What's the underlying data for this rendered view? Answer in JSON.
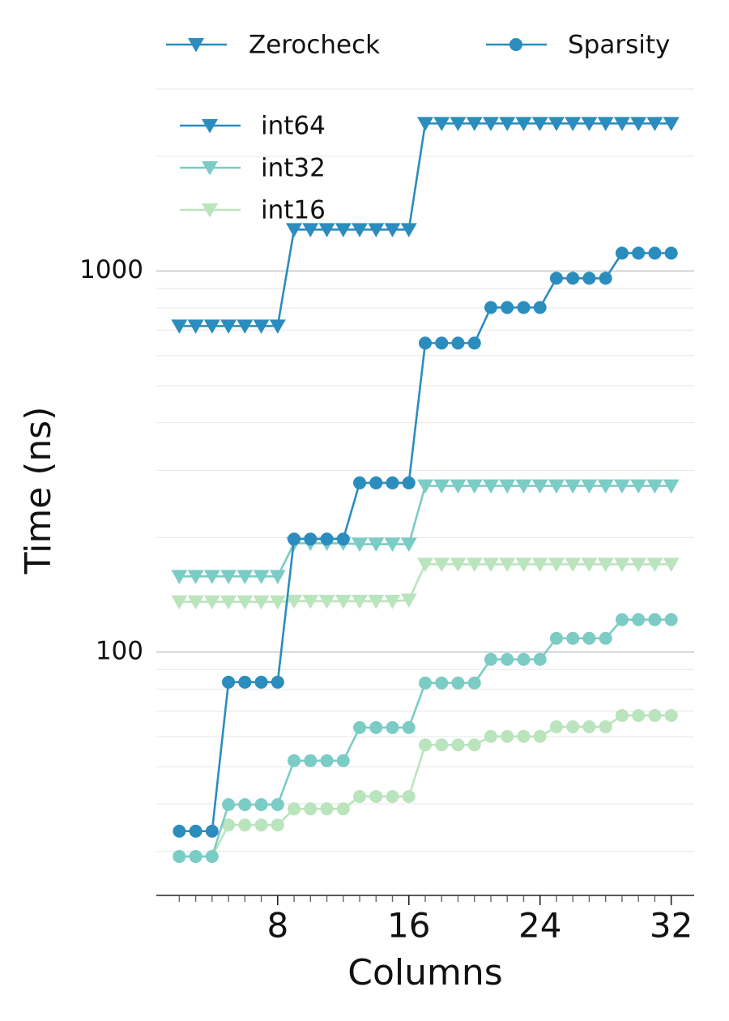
{
  "chart_data": {
    "type": "line",
    "xlabel": "Columns",
    "ylabel": "Time (ns)",
    "log_y": true,
    "grid": true,
    "x": [
      2,
      3,
      4,
      5,
      6,
      7,
      8,
      9,
      10,
      11,
      12,
      13,
      14,
      15,
      16,
      17,
      18,
      19,
      20,
      21,
      22,
      23,
      24,
      25,
      26,
      27,
      28,
      29,
      30,
      31,
      32
    ],
    "xlim": [
      0.6,
      33.4
    ],
    "xticks": [
      8,
      16,
      24,
      32
    ],
    "ylim": [
      23,
      3000
    ],
    "yticks": [
      100,
      1000
    ],
    "yminor": [
      30,
      40,
      50,
      60,
      70,
      80,
      90,
      200,
      300,
      400,
      500,
      600,
      700,
      800,
      900,
      2000,
      3000
    ],
    "methods": [
      {
        "name": "Zerocheck",
        "marker": "triangle-down"
      },
      {
        "name": "Sparsity",
        "marker": "circle"
      }
    ],
    "dtypes": [
      {
        "name": "int64",
        "color": "#2b8cbe"
      },
      {
        "name": "int32",
        "color": "#7bccc4"
      },
      {
        "name": "int16",
        "color": "#bae4bc"
      }
    ],
    "series": [
      {
        "method": 0,
        "dtype": 2,
        "values": [
          135.5,
          135.5,
          135.5,
          135.5,
          135.5,
          135.5,
          135.5,
          136,
          136,
          136,
          136,
          136,
          136,
          136,
          137,
          170,
          170,
          170,
          170,
          170,
          170,
          170,
          170,
          170,
          170,
          170,
          170,
          170,
          170,
          170,
          170
        ]
      },
      {
        "method": 0,
        "dtype": 1,
        "values": [
          158,
          158,
          158,
          158,
          158,
          158,
          158,
          193,
          193,
          193,
          193,
          192,
          192,
          192,
          192,
          273,
          273,
          273,
          273,
          273,
          273,
          273,
          273,
          273,
          273,
          273,
          273,
          273,
          273,
          273,
          273
        ]
      },
      {
        "method": 0,
        "dtype": 0,
        "values": [
          717,
          717,
          717,
          717,
          717,
          717,
          717,
          1284,
          1284,
          1284,
          1284,
          1284,
          1284,
          1284,
          1284,
          2438,
          2438,
          2438,
          2438,
          2438,
          2438,
          2438,
          2438,
          2438,
          2438,
          2438,
          2438,
          2438,
          2438,
          2438,
          2438
        ]
      },
      {
        "method": 1,
        "dtype": 2,
        "values": [
          29.1,
          29.1,
          29.1,
          35.2,
          35.2,
          35.2,
          35.2,
          38.8,
          38.8,
          38.8,
          38.8,
          41.8,
          41.8,
          41.8,
          41.8,
          57.1,
          57.1,
          57.1,
          57.1,
          60.1,
          60.1,
          60.1,
          60.1,
          63.7,
          63.7,
          63.7,
          63.7,
          68.2,
          68.2,
          68.2,
          68.2
        ]
      },
      {
        "method": 1,
        "dtype": 1,
        "values": [
          29.1,
          29.1,
          29.1,
          39.8,
          39.8,
          39.8,
          39.8,
          51.9,
          51.9,
          51.9,
          51.9,
          63.4,
          63.4,
          63.4,
          63.4,
          83,
          83,
          83,
          83,
          95.7,
          95.7,
          95.7,
          95.7,
          108.7,
          108.7,
          108.7,
          108.7,
          121.7,
          121.7,
          121.7,
          121.7
        ]
      },
      {
        "method": 1,
        "dtype": 0,
        "values": [
          33.9,
          33.9,
          33.9,
          83.4,
          83.4,
          83.4,
          83.4,
          198,
          198,
          198,
          198,
          278,
          278,
          278,
          278,
          647,
          647,
          647,
          647,
          802,
          802,
          802,
          802,
          957,
          957,
          957,
          957,
          1114,
          1114,
          1114,
          1114
        ]
      }
    ]
  }
}
